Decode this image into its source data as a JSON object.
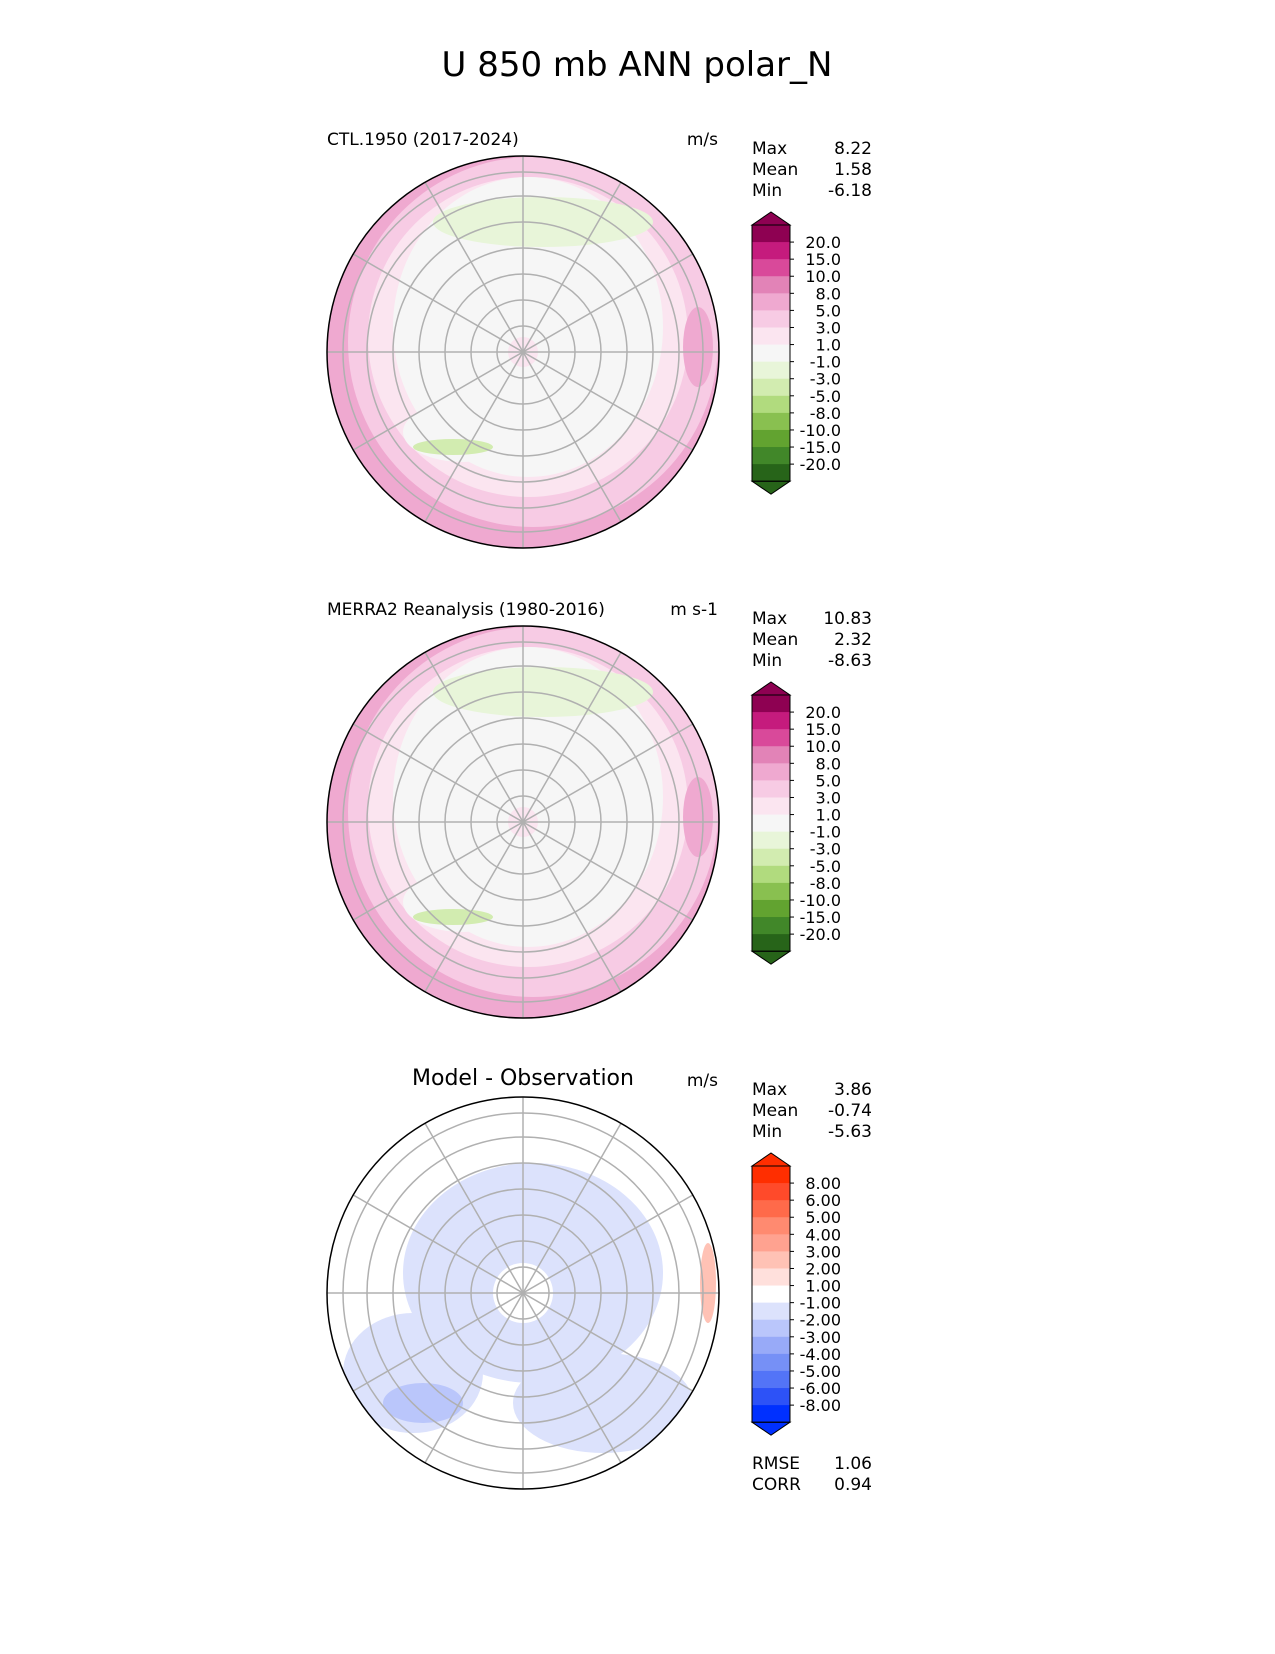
{
  "chart_data": {
    "type": "heatmap",
    "title": "U 850 mb ANN polar_N",
    "panels": [
      {
        "title": "CTL.1950 (2017-2024)",
        "units": "m/s",
        "stats": [
          {
            "label": "Max",
            "value": "8.22"
          },
          {
            "label": "Mean",
            "value": "1.58"
          },
          {
            "label": "Min",
            "value": "-6.18"
          }
        ],
        "colorbar": "main"
      },
      {
        "title": "MERRA2 Reanalysis (1980-2016)",
        "units": "m s-1",
        "stats": [
          {
            "label": "Max",
            "value": "10.83"
          },
          {
            "label": "Mean",
            "value": "2.32"
          },
          {
            "label": "Min",
            "value": "-8.63"
          }
        ],
        "colorbar": "main"
      },
      {
        "title": "Model - Observation",
        "units": "m/s",
        "stats": [
          {
            "label": "Max",
            "value": "3.86"
          },
          {
            "label": "Mean",
            "value": "-0.74"
          },
          {
            "label": "Min",
            "value": "-5.63"
          }
        ],
        "colorbar": "diff",
        "extra_stats": [
          {
            "label": "RMSE",
            "value": "1.06"
          },
          {
            "label": "CORR",
            "value": "0.94"
          }
        ]
      }
    ],
    "colorbars": {
      "main": {
        "labels": [
          "20.0",
          "15.0",
          "10.0",
          "8.0",
          "5.0",
          "3.0",
          "1.0",
          "-1.0",
          "-3.0",
          "-5.0",
          "-8.0",
          "-10.0",
          "-15.0",
          "-20.0"
        ],
        "colors": [
          "#8e0152",
          "#c51b7d",
          "#d9499a",
          "#e283b7",
          "#efa9d0",
          "#f7cbe4",
          "#fbe5f0",
          "#f6f6f6",
          "#e8f5d9",
          "#d2ecb0",
          "#b1db7e",
          "#89c050",
          "#62a330",
          "#418729",
          "#276419"
        ]
      },
      "diff": {
        "labels": [
          "8.00",
          "6.00",
          "5.00",
          "4.00",
          "3.00",
          "2.00",
          "1.00",
          "-1.00",
          "-2.00",
          "-3.00",
          "-4.00",
          "-5.00",
          "-6.00",
          "-8.00"
        ],
        "colors": [
          "#ff2e00",
          "#ff4a2a",
          "#ff6a4a",
          "#ff8a70",
          "#ffa290",
          "#ffc2b5",
          "#ffe0dc",
          "#ffffff",
          "#dce2fc",
          "#bac6fb",
          "#98aaf8",
          "#7690f6",
          "#5374f7",
          "#2d52f7",
          "#0030ff"
        ]
      }
    }
  }
}
